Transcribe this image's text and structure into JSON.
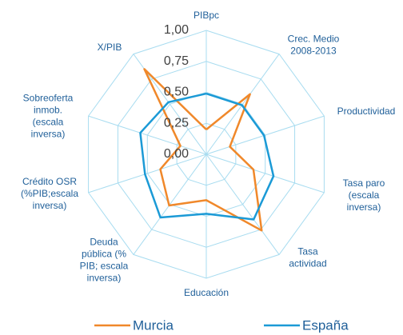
{
  "chart_data": {
    "type": "radar",
    "categories": [
      "PIBpc",
      "Crec. Medio\n2008-2013",
      "Productividad",
      "Tasa paro\n(escala\ninversa)",
      "Tasa\nactividad",
      "Educación",
      "Deuda\npública (%\nPIB; escala\ninversa)",
      "Crédito OSR\n(%PIB;escala\ninversa)",
      "Sobreoferta\ninmob.\n(escala\ninversa)",
      "X/PIB"
    ],
    "series": [
      {
        "name": "Murcia",
        "color": "#f0882a",
        "values": [
          0.2,
          0.6,
          0.2,
          0.4,
          0.76,
          0.37,
          0.51,
          0.39,
          0.22,
          0.85
        ]
      },
      {
        "name": "España",
        "color": "#1b9ad6",
        "values": [
          0.49,
          0.49,
          0.49,
          0.57,
          0.65,
          0.48,
          0.63,
          0.52,
          0.56,
          0.52
        ]
      }
    ],
    "ylim": [
      0,
      1
    ],
    "yticks": [
      {
        "value": 0,
        "label": "0,00"
      },
      {
        "value": 0.25,
        "label": "0,25"
      },
      {
        "value": 0.5,
        "label": "0,50"
      },
      {
        "value": 0.75,
        "label": "0,75"
      },
      {
        "value": 1,
        "label": "1,00"
      }
    ],
    "grid": true,
    "legend": "bottom"
  }
}
